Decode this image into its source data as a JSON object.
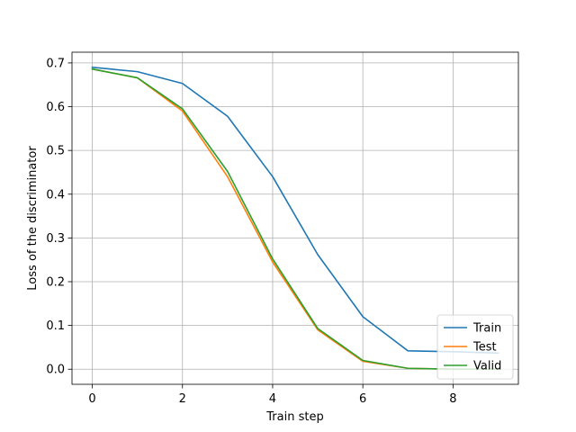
{
  "chart_data": {
    "type": "line",
    "title": "",
    "xlabel": "Train step",
    "ylabel": "Loss of the discriminator",
    "xlim": [
      -0.45,
      9.45
    ],
    "ylim": [
      -0.0345,
      0.7245
    ],
    "xticks": [
      0,
      2,
      4,
      6,
      8
    ],
    "yticks": [
      0.0,
      0.1,
      0.2,
      0.3,
      0.4,
      0.5,
      0.6,
      0.7
    ],
    "grid": true,
    "legend_position": "bottom-right",
    "x": [
      0,
      1,
      2,
      3,
      4,
      5,
      6,
      7,
      8,
      9
    ],
    "series": [
      {
        "name": "Train",
        "color": "#1f77b4",
        "values": [
          0.69,
          0.68,
          0.653,
          0.578,
          0.44,
          0.262,
          0.12,
          0.042,
          0.04,
          0.037
        ]
      },
      {
        "name": "Test",
        "color": "#ff7f0e",
        "values": [
          0.686,
          0.666,
          0.59,
          0.44,
          0.245,
          0.09,
          0.018,
          0.002,
          0.0,
          0.0
        ]
      },
      {
        "name": "Valid",
        "color": "#2ca02c",
        "values": [
          0.686,
          0.666,
          0.595,
          0.452,
          0.252,
          0.093,
          0.02,
          0.002,
          0.0,
          0.0
        ]
      }
    ]
  }
}
